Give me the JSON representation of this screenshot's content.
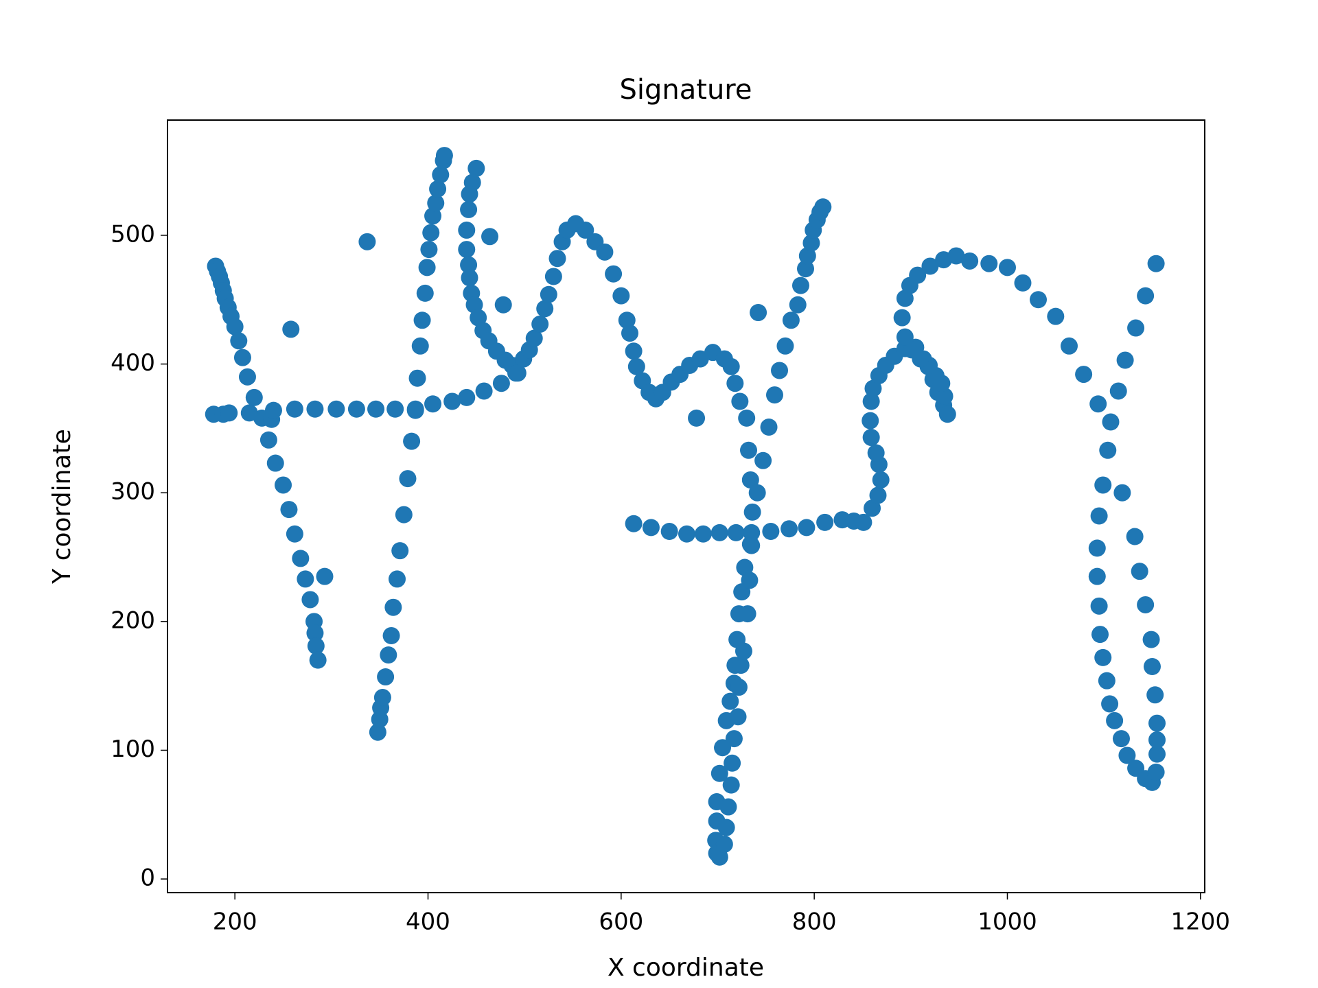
{
  "chart_data": {
    "type": "scatter",
    "title": "Signature",
    "x_label": "X coordinate",
    "y_label": "Y coordinate",
    "xlim": [
      130.2,
      1204.4
    ],
    "ylim": [
      -10.6,
      589.5
    ],
    "xticks": [
      200,
      400,
      600,
      800,
      1000,
      1200
    ],
    "yticks": [
      0,
      100,
      200,
      300,
      400,
      500
    ],
    "series": [
      {
        "color": "#1f77b4",
        "x": [
          180,
          182,
          184,
          186,
          188,
          190,
          193,
          196,
          200,
          204,
          208,
          213,
          220,
          228,
          235,
          242,
          250,
          256,
          262,
          268,
          273,
          278,
          282,
          283,
          284,
          286,
          293,
          258,
          337,
          178,
          188,
          194,
          215,
          238,
          240,
          262,
          283,
          305,
          326,
          346,
          366,
          387,
          405,
          425,
          440,
          458,
          476,
          491,
          348,
          350,
          351,
          353,
          356,
          359,
          362,
          364,
          368,
          371,
          375,
          379,
          383,
          387,
          389,
          392,
          394,
          397,
          399,
          401,
          403,
          405,
          408,
          410,
          413,
          416,
          417,
          450,
          446,
          443,
          442,
          440,
          440,
          442,
          443,
          445,
          448,
          452,
          457,
          463,
          471,
          480,
          487,
          493,
          499,
          505,
          510,
          516,
          521,
          525,
          530,
          534,
          539,
          544,
          553,
          563,
          573,
          583,
          592,
          600,
          606,
          609,
          613,
          616,
          622,
          629,
          636,
          643,
          652,
          661,
          671,
          682,
          695,
          707,
          714,
          718,
          723,
          730,
          732,
          734,
          736,
          734,
          728,
          725,
          722,
          720,
          718,
          717,
          713,
          709,
          705,
          702,
          699,
          699,
          698,
          699,
          702,
          707,
          709,
          711,
          714,
          715,
          717,
          721,
          722,
          724,
          727,
          731,
          733,
          735,
          742,
          678,
          464,
          478,
          741,
          747,
          753,
          759,
          764,
          770,
          776,
          783,
          786,
          791,
          793,
          797,
          799,
          803,
          806,
          809,
          613,
          631,
          650,
          668,
          685,
          702,
          719,
          735,
          755,
          774,
          792,
          811,
          829,
          841,
          851,
          860,
          866,
          869,
          867,
          864,
          859,
          858,
          859,
          861,
          867,
          874,
          883,
          894,
          905,
          913,
          918,
          923,
          928,
          934,
          938,
          935,
          932,
          926,
          919,
          910,
          901,
          894,
          891,
          894,
          899,
          907,
          920,
          934,
          947,
          961,
          981,
          1000,
          1016,
          1032,
          1050,
          1064,
          1079,
          1094,
          1099,
          1095,
          1093,
          1093,
          1095,
          1096,
          1099,
          1103,
          1106,
          1111,
          1118,
          1124,
          1133,
          1143,
          1150,
          1154,
          1155,
          1155,
          1155,
          1153,
          1150,
          1149,
          1143,
          1137,
          1132,
          1119,
          1104,
          1107,
          1115,
          1122,
          1133,
          1143,
          1154
        ],
        "values": [
          476,
          472,
          468,
          463,
          457,
          451,
          444,
          437,
          429,
          418,
          405,
          390,
          374,
          358,
          341,
          323,
          306,
          287,
          268,
          249,
          233,
          217,
          200,
          191,
          181,
          170,
          235,
          427,
          495,
          361,
          361,
          362,
          362,
          357,
          364,
          365,
          365,
          365,
          365,
          365,
          365,
          365,
          369,
          371,
          374,
          379,
          385,
          393,
          114,
          124,
          133,
          141,
          157,
          174,
          189,
          211,
          233,
          255,
          283,
          311,
          340,
          364,
          389,
          414,
          434,
          455,
          475,
          489,
          502,
          515,
          525,
          536,
          547,
          558,
          562,
          552,
          541,
          532,
          520,
          504,
          489,
          477,
          467,
          455,
          446,
          436,
          426,
          418,
          410,
          403,
          399,
          393,
          404,
          411,
          420,
          431,
          443,
          454,
          468,
          482,
          495,
          504,
          509,
          504,
          495,
          487,
          470,
          453,
          434,
          424,
          410,
          398,
          387,
          378,
          373,
          378,
          386,
          392,
          399,
          404,
          409,
          404,
          398,
          385,
          371,
          358,
          333,
          310,
          285,
          260,
          242,
          223,
          206,
          186,
          166,
          152,
          138,
          123,
          102,
          82,
          60,
          45,
          30,
          20,
          17,
          27,
          40,
          56,
          73,
          90,
          109,
          126,
          149,
          166,
          177,
          206,
          232,
          259,
          440,
          358,
          499,
          446,
          300,
          325,
          351,
          376,
          395,
          414,
          434,
          446,
          461,
          474,
          484,
          494,
          504,
          512,
          518,
          522,
          276,
          273,
          270,
          268,
          268,
          269,
          269,
          269,
          270,
          272,
          273,
          277,
          279,
          278,
          277,
          288,
          298,
          310,
          322,
          331,
          343,
          356,
          371,
          381,
          391,
          399,
          406,
          412,
          413,
          404,
          398,
          388,
          378,
          368,
          361,
          375,
          385,
          391,
          399,
          404,
          411,
          421,
          436,
          451,
          461,
          469,
          476,
          481,
          484,
          480,
          478,
          475,
          463,
          450,
          437,
          414,
          392,
          369,
          306,
          282,
          257,
          235,
          212,
          190,
          172,
          154,
          136,
          123,
          109,
          96,
          86,
          78,
          75,
          83,
          97,
          108,
          121,
          143,
          165,
          186,
          213,
          239,
          266,
          300,
          333,
          355,
          379,
          403,
          428,
          453,
          478
        ]
      }
    ]
  }
}
